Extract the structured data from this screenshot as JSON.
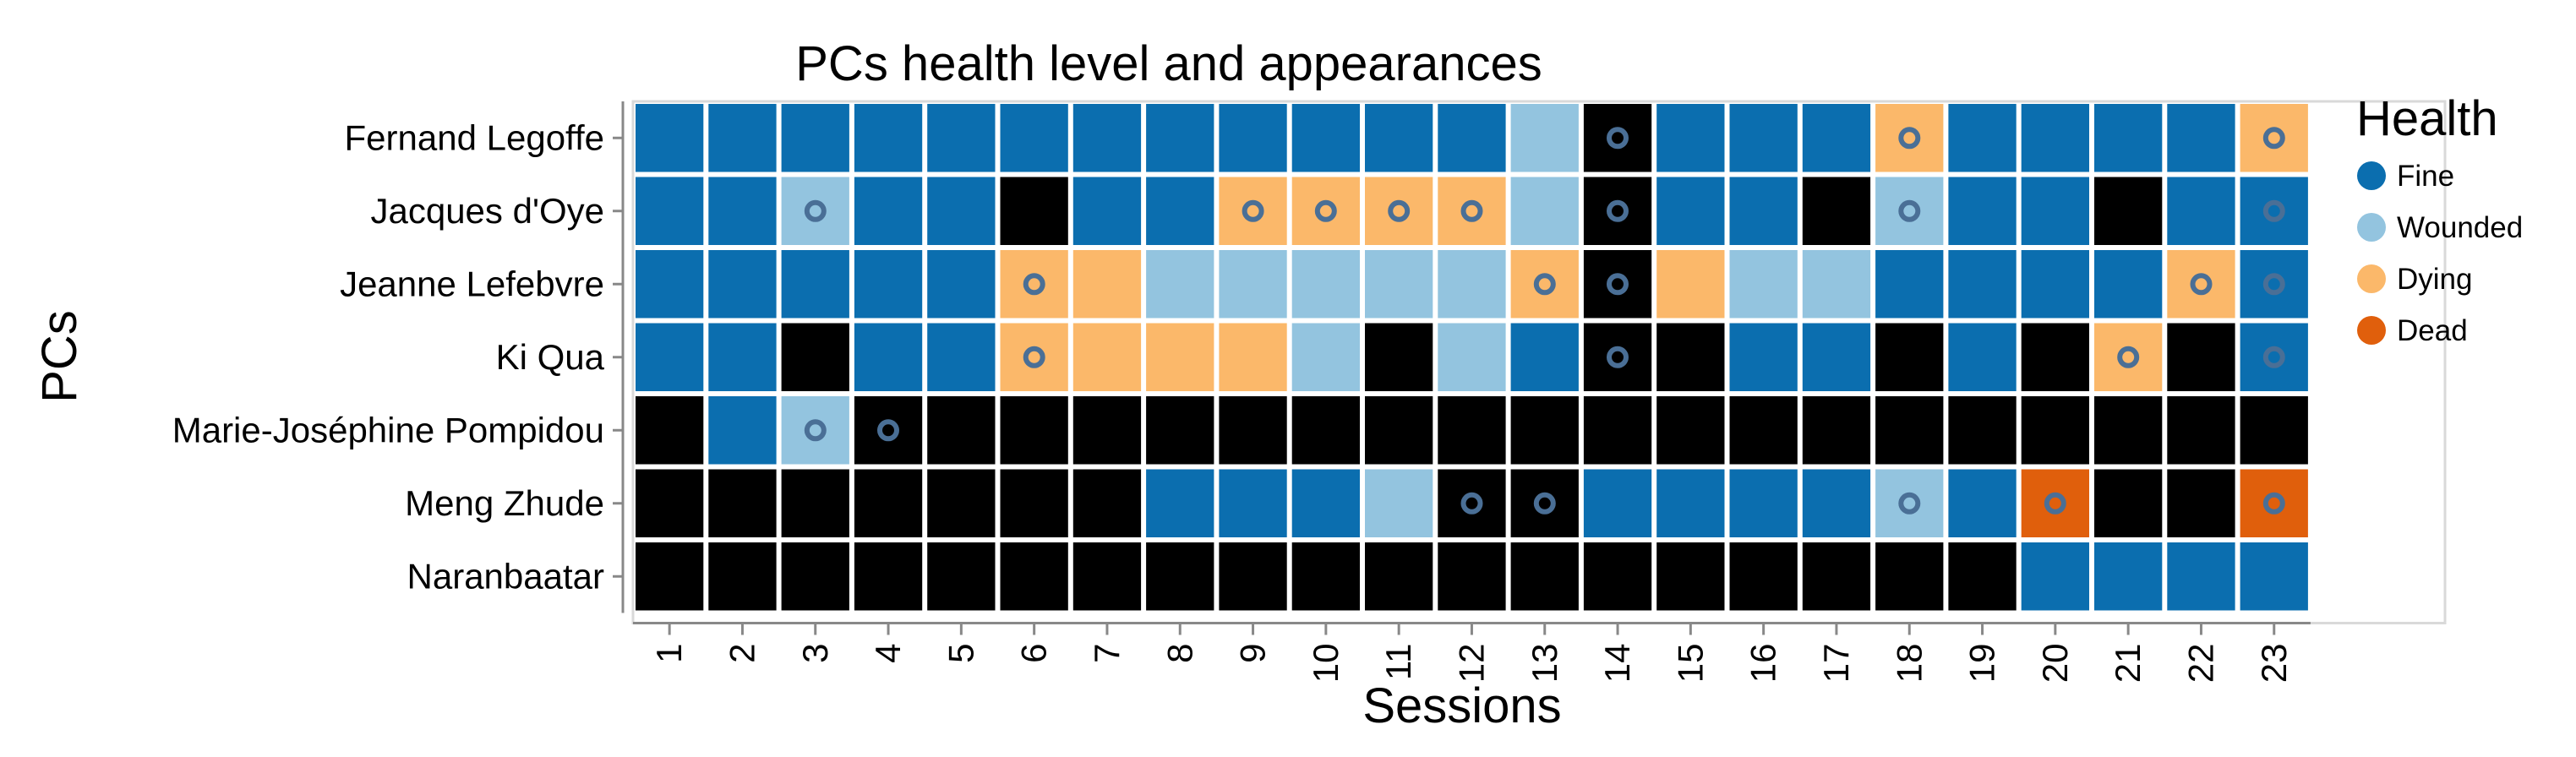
{
  "chart_data": {
    "type": "heatmap",
    "title": "PCs health level and appearances",
    "xlabel": "Sessions",
    "ylabel": "PCs",
    "x": [
      "1",
      "2",
      "3",
      "4",
      "5",
      "6",
      "7",
      "8",
      "9",
      "10",
      "11",
      "12",
      "13",
      "14",
      "15",
      "16",
      "17",
      "18",
      "19",
      "20",
      "21",
      "22",
      "23"
    ],
    "y": [
      "Fernand Legoffe",
      "Jacques d'Oye",
      "Jeanne Lefebvre",
      "Ki Qua",
      "Marie-Joséphine Pompidou",
      "Meng Zhude",
      "Naranbaatar"
    ],
    "health_legend": {
      "title": "Health",
      "levels": [
        {
          "code": "F",
          "label": "Fine",
          "color": "#0b6eaf"
        },
        {
          "code": "W",
          "label": "Wounded",
          "color": "#93c4df"
        },
        {
          "code": "D",
          "label": "Dying",
          "color": "#fbb86a"
        },
        {
          "code": "X",
          "label": "Dead",
          "color": "#e05f0c"
        }
      ],
      "absent_color": "#000000"
    },
    "appearance_marker_color": "#4a6f96",
    "cells": [
      [
        "F",
        "F",
        "F",
        "F",
        "F",
        "F",
        "F",
        "F",
        "F",
        "F",
        "F",
        "F",
        "W",
        "A",
        "F",
        "F",
        "F",
        "D",
        "F",
        "F",
        "F",
        "F",
        "D"
      ],
      [
        "F",
        "F",
        "W",
        "F",
        "F",
        "A",
        "F",
        "F",
        "D",
        "D",
        "D",
        "D",
        "W",
        "A",
        "F",
        "F",
        "A",
        "W",
        "F",
        "F",
        "A",
        "F",
        "F"
      ],
      [
        "F",
        "F",
        "F",
        "F",
        "F",
        "D",
        "D",
        "W",
        "W",
        "W",
        "W",
        "W",
        "D",
        "A",
        "D",
        "W",
        "W",
        "F",
        "F",
        "F",
        "F",
        "D",
        "F"
      ],
      [
        "F",
        "F",
        "A",
        "F",
        "F",
        "D",
        "D",
        "D",
        "D",
        "W",
        "A",
        "W",
        "F",
        "A",
        "A",
        "F",
        "F",
        "A",
        "F",
        "A",
        "D",
        "A",
        "F"
      ],
      [
        "A",
        "F",
        "W",
        "A",
        "A",
        "A",
        "A",
        "A",
        "A",
        "A",
        "A",
        "A",
        "A",
        "A",
        "A",
        "A",
        "A",
        "A",
        "A",
        "A",
        "A",
        "A",
        "A"
      ],
      [
        "A",
        "A",
        "A",
        "A",
        "A",
        "A",
        "A",
        "F",
        "F",
        "F",
        "W",
        "A",
        "A",
        "F",
        "F",
        "F",
        "F",
        "W",
        "F",
        "X",
        "A",
        "A",
        "X"
      ],
      [
        "A",
        "A",
        "A",
        "A",
        "A",
        "A",
        "A",
        "A",
        "A",
        "A",
        "A",
        "A",
        "A",
        "A",
        "A",
        "A",
        "A",
        "A",
        "A",
        "F",
        "F",
        "F",
        "F"
      ]
    ],
    "appearances": [
      [
        "14",
        "18",
        "23"
      ],
      [
        "3",
        "9",
        "10",
        "11",
        "12",
        "14",
        "18",
        "23"
      ],
      [
        "6",
        "13",
        "14",
        "22",
        "23"
      ],
      [
        "6",
        "14",
        "21",
        "23"
      ],
      [
        "3",
        "4"
      ],
      [
        "12",
        "13",
        "18",
        "20",
        "23"
      ],
      []
    ]
  }
}
